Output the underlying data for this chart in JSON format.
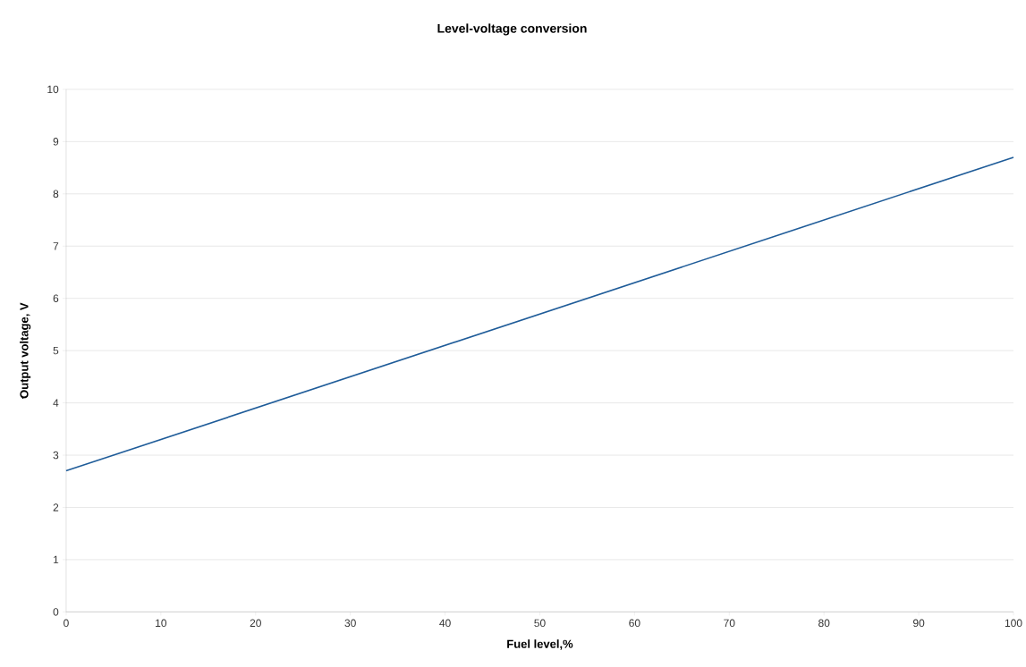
{
  "chart_data": {
    "type": "line",
    "title": "Level-voltage conversion",
    "xlabel": "Fuel level,%",
    "ylabel": "Output voltage, V",
    "x": [
      0,
      100
    ],
    "series": [
      {
        "color": "#1f5c99",
        "values": [
          2.7,
          8.7
        ]
      }
    ],
    "xlim": [
      0,
      100
    ],
    "xticks": [
      0,
      10,
      20,
      30,
      40,
      50,
      60,
      70,
      80,
      90,
      100
    ],
    "ylim": [
      0,
      10
    ],
    "yticks": [
      0,
      1,
      2,
      3,
      4,
      5,
      6,
      7,
      8,
      9,
      10
    ],
    "grid": "y",
    "marker": "none",
    "line_style": "solid"
  }
}
